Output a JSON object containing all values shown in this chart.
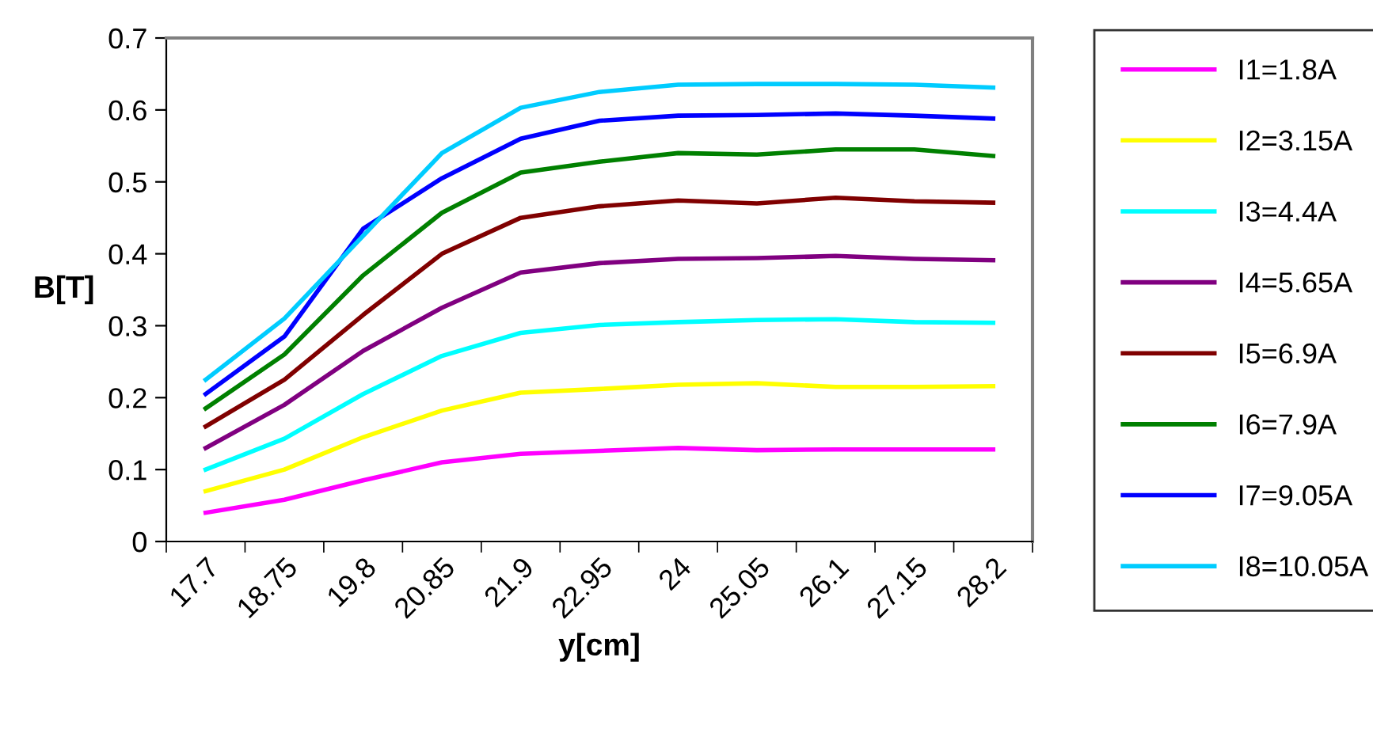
{
  "chart_data": {
    "type": "line",
    "xlabel": "y[cm]",
    "ylabel": "B[T]",
    "categories": [
      "17.7",
      "18.75",
      "19.8",
      "20.85",
      "21.9",
      "22.95",
      "24",
      "25.05",
      "26.1",
      "27.15",
      "28.2"
    ],
    "ylim": [
      0,
      0.7
    ],
    "yticks": [
      0,
      0.1,
      0.2,
      0.3,
      0.4,
      0.5,
      0.6,
      0.7
    ],
    "grid": false,
    "legend": "right",
    "marker": "none",
    "line_style": "solid",
    "series": [
      {
        "name": "I1=1.8A",
        "color": "#ff00ff",
        "values": [
          0.04,
          0.058,
          0.085,
          0.11,
          0.122,
          0.126,
          0.13,
          0.127,
          0.128,
          0.128,
          0.128
        ]
      },
      {
        "name": "I2=3.15A",
        "color": "#ffff00",
        "values": [
          0.07,
          0.1,
          0.145,
          0.182,
          0.207,
          0.212,
          0.218,
          0.22,
          0.215,
          0.215,
          0.216
        ]
      },
      {
        "name": "I3=4.4A",
        "color": "#00ffff",
        "values": [
          0.1,
          0.143,
          0.205,
          0.258,
          0.29,
          0.301,
          0.305,
          0.308,
          0.309,
          0.305,
          0.304
        ]
      },
      {
        "name": "I4=5.65A",
        "color": "#800080",
        "values": [
          0.13,
          0.19,
          0.265,
          0.325,
          0.374,
          0.387,
          0.393,
          0.394,
          0.397,
          0.393,
          0.391
        ]
      },
      {
        "name": "I5=6.9A",
        "color": "#800000",
        "values": [
          0.16,
          0.225,
          0.315,
          0.4,
          0.45,
          0.466,
          0.474,
          0.47,
          0.478,
          0.473,
          0.471
        ]
      },
      {
        "name": "I6=7.9A",
        "color": "#008000",
        "values": [
          0.185,
          0.26,
          0.37,
          0.457,
          0.513,
          0.528,
          0.54,
          0.538,
          0.545,
          0.545,
          0.536
        ]
      },
      {
        "name": "I7=9.05A",
        "color": "#0000ff",
        "values": [
          0.205,
          0.285,
          0.435,
          0.505,
          0.56,
          0.585,
          0.592,
          0.593,
          0.595,
          0.592,
          0.588
        ]
      },
      {
        "name": "I8=10.05A",
        "color": "#00ccff",
        "values": [
          0.225,
          0.31,
          0.425,
          0.54,
          0.603,
          0.625,
          0.635,
          0.636,
          0.636,
          0.635,
          0.631
        ]
      }
    ]
  }
}
